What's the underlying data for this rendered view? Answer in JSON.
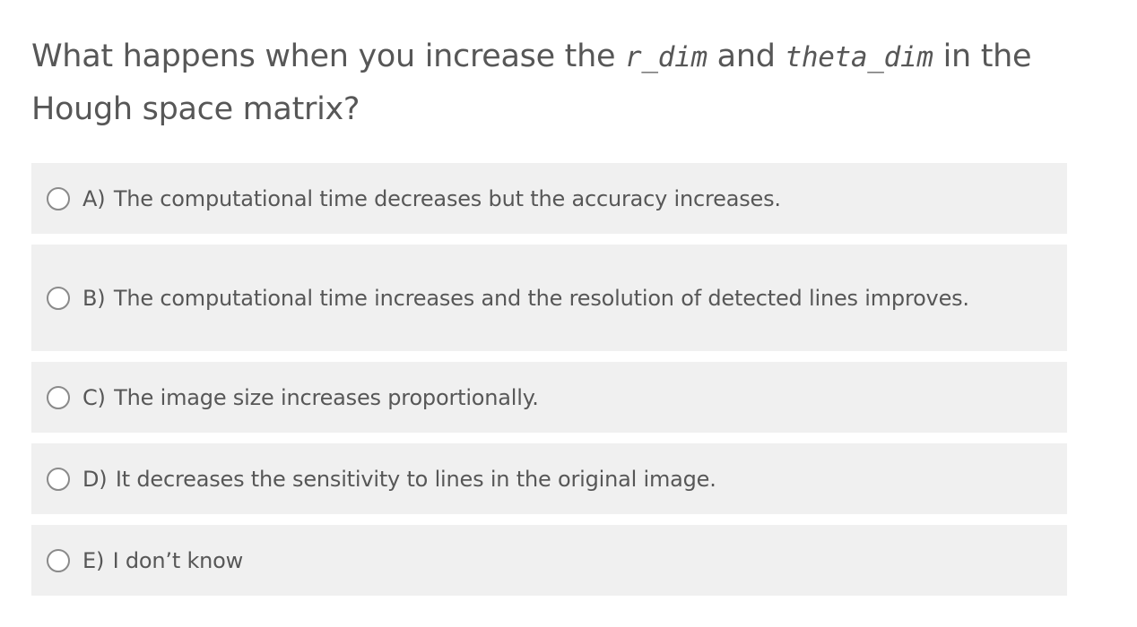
{
  "question": {
    "prefix": "What happens when you increase the ",
    "code1": "r_dim",
    "middle": " and ",
    "code2": "theta_dim",
    "suffix": " in the Hough space matrix?"
  },
  "options": [
    {
      "letter": "A)",
      "text": " The computational time decreases but the accuracy increases."
    },
    {
      "letter": "B)",
      "text": " The computational time increases and the resolution of detected lines improves."
    },
    {
      "letter": "C)",
      "text": " The image size increases proportionally."
    },
    {
      "letter": "D)",
      "text": " It decreases the sensitivity to lines in the original image."
    },
    {
      "letter": "E)",
      "text": " I don’t know"
    }
  ]
}
